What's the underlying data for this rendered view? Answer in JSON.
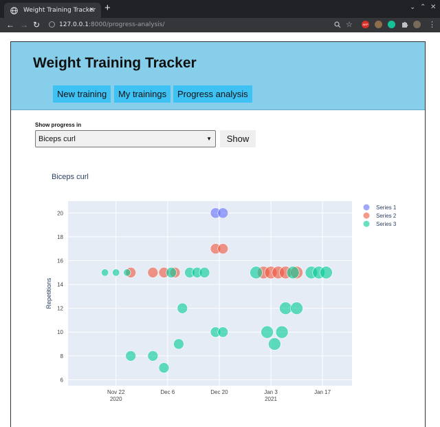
{
  "browser": {
    "tab_title": "Weight Training Tracker",
    "tab_close": "×",
    "new_tab": "+",
    "url_host": "127.0.0.1",
    "url_path": ":8000/progress-analysis/",
    "back": "←",
    "forward": "→",
    "reload": "↻",
    "win_min": "⌄",
    "win_max": "⌃",
    "win_close": "✕",
    "abp_label": "ABP"
  },
  "app": {
    "title": "Weight Training Tracker",
    "nav": [
      {
        "label": "New training"
      },
      {
        "label": "My trainings"
      },
      {
        "label": "Progress analysis"
      }
    ]
  },
  "form": {
    "label": "Show progress in",
    "selected_exercise": "Biceps curl",
    "show_button": "Show"
  },
  "colors": {
    "header_bg": "#87ceeb",
    "nav_bg": "#3ec1f3",
    "plot_bg": "#e5ecf6"
  },
  "chart_data": {
    "type": "scatter",
    "title": "Biceps curl",
    "xlabel": "",
    "ylabel": "Repetitions",
    "ylim": [
      5.5,
      21
    ],
    "xlim": [
      "2020-11-09",
      "2021-01-25"
    ],
    "y_ticks": [
      6,
      8,
      10,
      12,
      14,
      16,
      18,
      20
    ],
    "x_ticks": [
      {
        "date": "2020-11-22",
        "label": "Nov 22",
        "sublabel": "2020"
      },
      {
        "date": "2020-12-06",
        "label": "Dec 6",
        "sublabel": ""
      },
      {
        "date": "2020-12-20",
        "label": "Dec 20",
        "sublabel": ""
      },
      {
        "date": "2021-01-03",
        "label": "Jan 3",
        "sublabel": "2021"
      },
      {
        "date": "2021-01-17",
        "label": "Jan 17",
        "sublabel": ""
      }
    ],
    "grid": true,
    "legend_position": "top-right",
    "series": [
      {
        "name": "Series 1",
        "color": "#636efa",
        "points": [
          {
            "x": "2020-12-19",
            "y": 20,
            "size": 1
          },
          {
            "x": "2020-12-21",
            "y": 20,
            "size": 1
          }
        ]
      },
      {
        "name": "Series 2",
        "color": "#ef553b",
        "points": [
          {
            "x": "2020-11-26",
            "y": 15,
            "size": 1
          },
          {
            "x": "2020-12-02",
            "y": 15,
            "size": 1
          },
          {
            "x": "2020-12-05",
            "y": 15,
            "size": 1
          },
          {
            "x": "2020-12-08",
            "y": 15,
            "size": 1
          },
          {
            "x": "2020-12-19",
            "y": 17,
            "size": 1
          },
          {
            "x": "2020-12-21",
            "y": 17,
            "size": 1
          },
          {
            "x": "2021-01-01",
            "y": 15,
            "size": 1.2
          },
          {
            "x": "2021-01-03",
            "y": 15,
            "size": 1.2
          },
          {
            "x": "2021-01-05",
            "y": 15,
            "size": 1.2
          },
          {
            "x": "2021-01-07",
            "y": 15,
            "size": 1.2
          },
          {
            "x": "2021-01-10",
            "y": 15,
            "size": 1.2
          }
        ]
      },
      {
        "name": "Series 3",
        "color": "#00cc96",
        "points": [
          {
            "x": "2020-11-19",
            "y": 15,
            "size": 0.7
          },
          {
            "x": "2020-11-22",
            "y": 15,
            "size": 0.7
          },
          {
            "x": "2020-11-25",
            "y": 15,
            "size": 0.7
          },
          {
            "x": "2020-11-26",
            "y": 8,
            "size": 1
          },
          {
            "x": "2020-12-02",
            "y": 8,
            "size": 1
          },
          {
            "x": "2020-12-05",
            "y": 7,
            "size": 1
          },
          {
            "x": "2020-12-07",
            "y": 15,
            "size": 1
          },
          {
            "x": "2020-12-09",
            "y": 9,
            "size": 1
          },
          {
            "x": "2020-12-10",
            "y": 12,
            "size": 1
          },
          {
            "x": "2020-12-12",
            "y": 15,
            "size": 1
          },
          {
            "x": "2020-12-14",
            "y": 15,
            "size": 1
          },
          {
            "x": "2020-12-16",
            "y": 15,
            "size": 1
          },
          {
            "x": "2020-12-19",
            "y": 10,
            "size": 1
          },
          {
            "x": "2020-12-21",
            "y": 10,
            "size": 1
          },
          {
            "x": "2020-12-30",
            "y": 15,
            "size": 1.2
          },
          {
            "x": "2021-01-02",
            "y": 10,
            "size": 1.2
          },
          {
            "x": "2021-01-04",
            "y": 9,
            "size": 1.2
          },
          {
            "x": "2021-01-06",
            "y": 10,
            "size": 1.2
          },
          {
            "x": "2021-01-07",
            "y": 12,
            "size": 1.2
          },
          {
            "x": "2021-01-09",
            "y": 15,
            "size": 1.2
          },
          {
            "x": "2021-01-10",
            "y": 12,
            "size": 1.2
          },
          {
            "x": "2021-01-14",
            "y": 15,
            "size": 1.2
          },
          {
            "x": "2021-01-16",
            "y": 15,
            "size": 1.2
          },
          {
            "x": "2021-01-18",
            "y": 15,
            "size": 1.2
          }
        ]
      }
    ]
  }
}
